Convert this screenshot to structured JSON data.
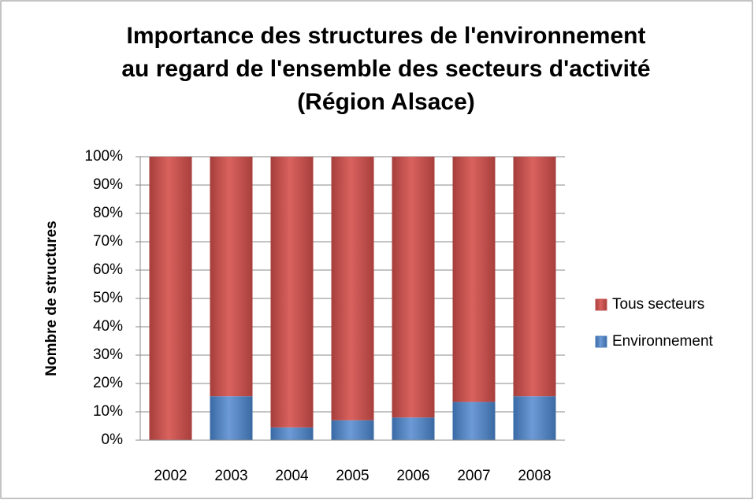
{
  "chart_data": {
    "type": "stacked_bar",
    "title": [
      "Importance des structures de l'environnement",
      "au regard de l'ensemble des secteurs d'activité",
      "(Région Alsace)"
    ],
    "y_label": "Nombre de structures",
    "categories": [
      "2002",
      "2003",
      "2004",
      "2005",
      "2006",
      "2007",
      "2008"
    ],
    "series": [
      {
        "name": "Environnement",
        "color": "#4f81bd",
        "values": [
          0,
          15.5,
          4.5,
          7,
          8,
          13.5,
          15.5
        ]
      },
      {
        "name": "Tous secteurs",
        "color": "#c0504d",
        "values": [
          100,
          84.5,
          95.5,
          93,
          92,
          86.5,
          84.5
        ]
      }
    ],
    "ylim": [
      0,
      100
    ],
    "yticks": [
      {
        "value": 0,
        "label": "0%"
      },
      {
        "value": 10,
        "label": "10%"
      },
      {
        "value": 20,
        "label": "20%"
      },
      {
        "value": 30,
        "label": "30%"
      },
      {
        "value": 40,
        "label": "40%"
      },
      {
        "value": 50,
        "label": "50%"
      },
      {
        "value": 60,
        "label": "60%"
      },
      {
        "value": 70,
        "label": "70%"
      },
      {
        "value": 80,
        "label": "80%"
      },
      {
        "value": 90,
        "label": "90%"
      },
      {
        "value": 100,
        "label": "100%"
      }
    ],
    "grid": true,
    "legend": "right"
  }
}
